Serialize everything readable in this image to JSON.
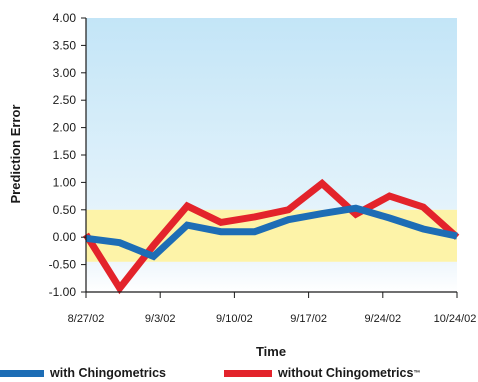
{
  "chart_data": {
    "type": "line",
    "title": "",
    "xlabel": "Time",
    "ylabel": "Prediction Error",
    "ylim": [
      -1.0,
      4.0
    ],
    "y_ticks": [
      "4.00",
      "3.50",
      "3.00",
      "2.50",
      "2.00",
      "1.50",
      "1.00",
      "0.50",
      "0.00",
      "-0.50",
      "-1.00"
    ],
    "x_tick_labels": [
      "8/27/02",
      "9/3/02",
      "9/10/02",
      "9/17/02",
      "9/24/02",
      "10/24/02"
    ],
    "background_bands": [
      {
        "from": -0.45,
        "to": 0.5,
        "color": "#fdf3a8"
      },
      {
        "from": 0.5,
        "to": 4.0,
        "color": "#c6e7f7"
      }
    ],
    "series": [
      {
        "name": "with Chingometrics",
        "color": "#1d6db5",
        "values": [
          -0.02,
          -0.1,
          -0.35,
          0.22,
          0.1,
          0.1,
          0.32,
          0.43,
          0.53,
          0.35,
          0.15,
          0.02
        ]
      },
      {
        "name": "without Chingometrics",
        "name_suffix": "™",
        "color": "#e3232b",
        "values": [
          0.05,
          -0.93,
          -0.15,
          0.57,
          0.27,
          0.37,
          0.5,
          0.98,
          0.42,
          0.75,
          0.55,
          0.0
        ]
      }
    ],
    "legend_position": "bottom",
    "grid": false
  }
}
